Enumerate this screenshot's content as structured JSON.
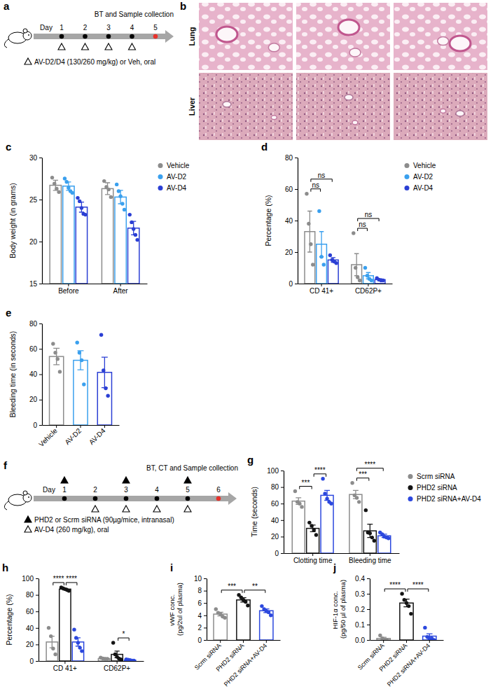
{
  "chart_data": [
    {
      "panel": "c",
      "type": "bar",
      "categories": [
        "Before",
        "After"
      ],
      "y_label": "Body weight (in grams)",
      "ylim": [
        15,
        30
      ],
      "yticks": [
        15,
        20,
        25,
        30
      ],
      "legend": "right",
      "series": [
        {
          "name": "Vehicle",
          "color": "#8c8c8c",
          "values": [
            26.7,
            26.3
          ],
          "errors": [
            0.6,
            0.7
          ],
          "points": [
            [
              27.6,
              26.9,
              26.3,
              25.9
            ],
            [
              27.2,
              26.5,
              26.2,
              25.3
            ]
          ]
        },
        {
          "name": "AV-D2",
          "color": "#3aa0ee",
          "values": [
            26.6,
            25.3
          ],
          "errors": [
            0.5,
            0.8
          ],
          "points": [
            [
              27.5,
              27.1,
              26.4,
              26.0,
              25.8
            ],
            [
              26.8,
              26.0,
              25.4,
              24.5,
              23.8
            ]
          ]
        },
        {
          "name": "AV-D4",
          "color": "#2b3fd4",
          "values": [
            24.1,
            21.6
          ],
          "errors": [
            0.6,
            0.8
          ],
          "points": [
            [
              25.2,
              24.8,
              24.0,
              23.3,
              23.2
            ],
            [
              23.2,
              22.3,
              21.5,
              20.8,
              20.2
            ]
          ]
        }
      ]
    },
    {
      "panel": "d",
      "type": "bar",
      "categories": [
        "CD 41+",
        "CD62P+"
      ],
      "y_label": "Percentage (%)",
      "ylim": [
        0,
        80
      ],
      "yticks": [
        0,
        20,
        40,
        60,
        80
      ],
      "legend": "right",
      "series": [
        {
          "name": "Vehicle",
          "color": "#8c8c8c",
          "values": [
            33,
            12
          ],
          "errors": [
            13,
            7
          ],
          "points": [
            [
              57,
              38,
              25,
              12
            ],
            [
              32,
              10,
              4,
              2
            ]
          ]
        },
        {
          "name": "AV-D2",
          "color": "#3aa0ee",
          "values": [
            25,
            5
          ],
          "errors": [
            8,
            2
          ],
          "points": [
            [
              46,
              17,
              12
            ],
            [
              10,
              5,
              3,
              2
            ]
          ]
        },
        {
          "name": "AV-D4",
          "color": "#2b3fd4",
          "values": [
            15,
            2.5
          ],
          "errors": [
            1.5,
            0.5
          ],
          "points": [
            [
              18,
              15,
              14,
              13
            ],
            [
              3.5,
              2.5,
              2,
              2
            ]
          ]
        }
      ],
      "annotations": [
        {
          "category": "CD 41+",
          "groups": [
            "Vehicle",
            "AV-D2"
          ],
          "label": "ns"
        },
        {
          "category": "CD 41+",
          "groups": [
            "Vehicle",
            "AV-D4"
          ],
          "label": "ns"
        },
        {
          "category": "CD62P+",
          "groups": [
            "Vehicle",
            "AV-D2"
          ],
          "label": "ns"
        },
        {
          "category": "CD62P+",
          "groups": [
            "Vehicle",
            "AV-D4"
          ],
          "label": "ns"
        }
      ]
    },
    {
      "panel": "e",
      "type": "bar",
      "categories": [
        "Vehicle",
        "AV-D2",
        "AV-D4"
      ],
      "y_label": "Bleeding time (in seconds)",
      "ylim": [
        0,
        80
      ],
      "yticks": [
        0,
        20,
        40,
        60,
        80
      ],
      "colors": [
        "#8c8c8c",
        "#3aa0ee",
        "#2b3fd4"
      ],
      "values": [
        54,
        51,
        41.5
      ],
      "errors": [
        6.5,
        7.5,
        12
      ],
      "points": [
        [
          64,
          57,
          52,
          42
        ],
        [
          65,
          57,
          51,
          32
        ],
        [
          71,
          43,
          29,
          23
        ]
      ]
    },
    {
      "panel": "g",
      "type": "bar",
      "categories": [
        "Clotting time",
        "Bleeding time"
      ],
      "y_label": "Time (seconds)",
      "ylim": [
        0,
        100
      ],
      "yticks": [
        0,
        20,
        40,
        60,
        80,
        100
      ],
      "legend": "right",
      "series": [
        {
          "name": "Scrm siRNA",
          "color": "#8c8c8c",
          "values": [
            63,
            71
          ],
          "errors": [
            4,
            5
          ],
          "points": [
            [
              75,
              62,
              60,
              56
            ],
            [
              85,
              70,
              67,
              62
            ]
          ]
        },
        {
          "name": "PHD2 siRNA",
          "color": "#141414",
          "values": [
            30,
            27
          ],
          "errors": [
            4,
            8
          ],
          "points": [
            [
              37,
              33,
              28,
              22
            ],
            [
              52,
              25,
              24,
              19,
              15
            ]
          ]
        },
        {
          "name": "PHD2 siRNA+AV-D4",
          "color": "#2c48de",
          "values": [
            70,
            21
          ],
          "errors": [
            6,
            2
          ],
          "points": [
            [
              90,
              72,
              66,
              62,
              60
            ],
            [
              25,
              23,
              20,
              19,
              18
            ]
          ]
        }
      ],
      "annotations": [
        {
          "category": "Clotting time",
          "groups": [
            "Scrm siRNA",
            "PHD2 siRNA"
          ],
          "label": "***"
        },
        {
          "category": "Clotting time",
          "groups": [
            "PHD2 siRNA",
            "PHD2 siRNA+AV-D4"
          ],
          "label": "****"
        },
        {
          "category": "Bleeding time",
          "groups": [
            "Scrm siRNA",
            "PHD2 siRNA"
          ],
          "label": "***"
        },
        {
          "category": "Bleeding time",
          "groups": [
            "Scrm siRNA",
            "PHD2 siRNA+AV-D4"
          ],
          "label": "****"
        }
      ]
    },
    {
      "panel": "h",
      "type": "bar",
      "categories": [
        "CD 41+",
        "CD62P+"
      ],
      "y_label": "Percentage (%)",
      "ylim": [
        0,
        100
      ],
      "yticks": [
        0,
        20,
        40,
        60,
        80,
        100
      ],
      "series": [
        {
          "name": "Scrm siRNA",
          "color": "#8c8c8c",
          "values": [
            23,
            3
          ],
          "errors": [
            7,
            1
          ],
          "points": [
            [
              40,
              30,
              15,
              8
            ],
            [
              4,
              3,
              2.5,
              2.5
            ]
          ]
        },
        {
          "name": "PHD2 siRNA",
          "color": "#141414",
          "values": [
            87,
            8
          ],
          "errors": [
            1,
            4
          ],
          "points": [
            [
              89,
              88,
              87,
              86,
              85
            ],
            [
              22,
              8,
              5,
              3,
              2
            ]
          ]
        },
        {
          "name": "PHD2 siRNA+AV-D4",
          "color": "#2c48de",
          "values": [
            23,
            1
          ],
          "errors": [
            5,
            0.5
          ],
          "points": [
            [
              38,
              28,
              22,
              16,
              12
            ],
            [
              2,
              1.5,
              1,
              0.5,
              0.5
            ]
          ]
        }
      ],
      "annotations": [
        {
          "category": "CD 41+",
          "groups": [
            "Scrm siRNA",
            "PHD2 siRNA"
          ],
          "label": "****"
        },
        {
          "category": "CD 41+",
          "groups": [
            "PHD2 siRNA",
            "PHD2 siRNA+AV-D4"
          ],
          "label": "****"
        },
        {
          "category": "CD62P+",
          "groups": [
            "PHD2 siRNA",
            "PHD2 siRNA+AV-D4"
          ],
          "label": "*"
        }
      ]
    },
    {
      "panel": "i",
      "type": "bar",
      "categories": [
        "Scrm siRNA",
        "PHD2 siRNA",
        "PHD2 siRNA+AV-D4"
      ],
      "y_label": "vWF conc. (pg/2ul of plasma)",
      "ylim": [
        0,
        10
      ],
      "yticks": [
        0,
        2,
        4,
        6,
        8,
        10
      ],
      "colors": [
        "#8c8c8c",
        "#141414",
        "#2c48de"
      ],
      "values": [
        4.2,
        6.5,
        4.75
      ],
      "errors": [
        0.3,
        0.35,
        0.3
      ],
      "points": [
        [
          5.0,
          4.4,
          4.2,
          3.8,
          3.6
        ],
        [
          7.3,
          6.9,
          6.5,
          6.2,
          5.6
        ],
        [
          5.5,
          5.0,
          4.7,
          4.5,
          4.0
        ]
      ],
      "annotations": [
        {
          "groups": [
            "Scrm siRNA",
            "PHD2 siRNA"
          ],
          "label": "***"
        },
        {
          "groups": [
            "PHD2 siRNA",
            "PHD2 siRNA+AV-D4"
          ],
          "label": "**"
        }
      ]
    },
    {
      "panel": "j",
      "type": "bar",
      "categories": [
        "Scrm siRNA",
        "PHD2 siRNA",
        "PHD2 siRNA+AV-D4"
      ],
      "y_label": "HIF-1α conc. (pg/50 µl of plasma)",
      "ylim": [
        0,
        0.4
      ],
      "yticks": [
        {
          "value": 0,
          "label": "0.0"
        },
        {
          "value": 0.1,
          "label": "0.1"
        },
        {
          "value": 0.2,
          "label": "0.2"
        },
        {
          "value": 0.3,
          "label": "0.3"
        },
        {
          "value": 0.4,
          "label": "0.4"
        }
      ],
      "colors": [
        "#8c8c8c",
        "#141414",
        "#2c48de"
      ],
      "values": [
        0.01,
        0.24,
        0.025
      ],
      "errors": [
        0.008,
        0.025,
        0.015
      ],
      "points": [
        [
          0.03,
          0.01,
          0,
          0
        ],
        [
          0.3,
          0.26,
          0.24,
          0.22,
          0.17
        ],
        [
          0.08,
          0.02,
          0.01,
          0.01,
          0
        ]
      ],
      "annotations": [
        {
          "groups": [
            "Scrm siRNA",
            "PHD2 siRNA"
          ],
          "label": "****"
        },
        {
          "groups": [
            "PHD2 siRNA",
            "PHD2 siRNA+AV-D4"
          ],
          "label": "****"
        }
      ]
    }
  ],
  "schematics": [
    {
      "panel": "a",
      "day_label": "Day",
      "days": [
        1,
        2,
        3,
        4,
        5
      ],
      "endpoint": "BT and Sample collection",
      "treatments": [
        {
          "marker": "open-triangle",
          "days": [
            1,
            2,
            3,
            4
          ],
          "text": "AV-D2/D4 (130/260 mg/kg) or Veh, oral"
        }
      ]
    },
    {
      "panel": "f",
      "day_label": "Day",
      "days": [
        1,
        2,
        3,
        4,
        5,
        6
      ],
      "endpoint": "BT, CT and Sample collection",
      "treatments": [
        {
          "marker": "filled-triangle",
          "days": [
            1,
            3,
            5
          ],
          "text": "PHD2 or Scrm siRNA (90µg/mice, intranasal)"
        },
        {
          "marker": "open-triangle",
          "days": [
            2,
            3,
            4,
            5
          ],
          "text": "AV-D4 (260 mg/kg), oral"
        }
      ]
    }
  ],
  "images": {
    "panel": "b",
    "rows": [
      "Lung",
      "Liver"
    ]
  }
}
